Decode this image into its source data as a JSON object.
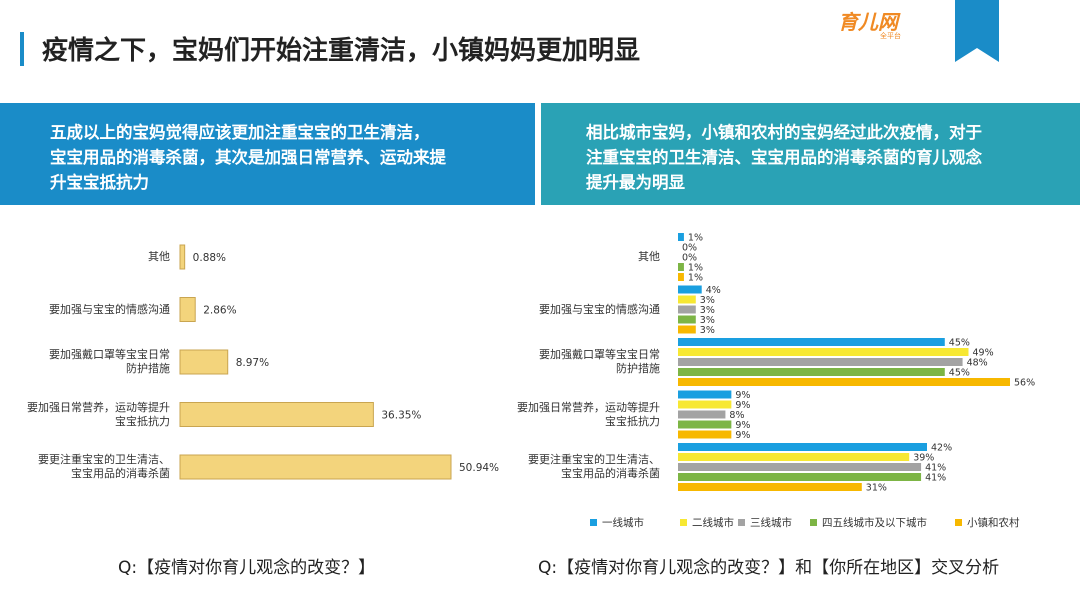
{
  "header": {
    "title": "疫情之下，宝妈们开始注重清洁，小镇妈妈更加明显",
    "logo": "育儿网",
    "logo_sub": "全平台"
  },
  "panels": [
    "五成以上的宝妈觉得应该更加注重宝宝的卫生清洁，\n宝宝用品的消毒杀菌，其次是加强日常营养、运动来提\n升宝宝抵抗力",
    "相比城市宝妈，小镇和农村的宝妈经过此次疫情，对于\n注重宝宝的卫生清洁、宝宝用品的消毒杀菌的育儿观念\n提升最为明显"
  ],
  "chart_data": [
    {
      "type": "bar",
      "caption": "Q:【疫情对你育儿观念的改变？】",
      "categories": [
        "其他",
        "要加强与宝宝的情感沟通",
        "要加强戴口罩等宝宝日常\n防护措施",
        "要加强日常营养，运动等提升\n宝宝抵抗力",
        "要更注重宝宝的卫生清洁、\n宝宝用品的消毒杀菌"
      ],
      "values": [
        0.88,
        2.86,
        8.97,
        36.35,
        50.94
      ],
      "value_labels": [
        "0.88%",
        "2.86%",
        "8.97%",
        "36.35%",
        "50.94%"
      ],
      "color": "#f3d47c"
    },
    {
      "type": "bar",
      "caption": "Q:【疫情对你育儿观念的改变？】和【你所在地区】交叉分析",
      "categories": [
        "其他",
        "要加强与宝宝的情感沟通",
        "要加强戴口罩等宝宝日常\n防护措施",
        "要加强日常营养，运动等提升\n宝宝抵抗力",
        "要更注重宝宝的卫生清洁、\n宝宝用品的消毒杀菌"
      ],
      "series": [
        {
          "name": "一线城市",
          "color": "#1a9fe0",
          "values": [
            1,
            4,
            45,
            9,
            42
          ],
          "value_labels": [
            "1%",
            "4%",
            "45%",
            "9%",
            "42%"
          ]
        },
        {
          "name": "二线城市",
          "color": "#f7e833",
          "values": [
            0,
            3,
            49,
            9,
            39
          ],
          "value_labels": [
            "0%",
            "3%",
            "49%",
            "9%",
            "39%"
          ]
        },
        {
          "name": "三线城市",
          "color": "#a3a3a3",
          "values": [
            0,
            3,
            48,
            8,
            41
          ],
          "value_labels": [
            "0%",
            "3%",
            "48%",
            "8%",
            "41%"
          ]
        },
        {
          "name": "四五线城市及以下城市",
          "color": "#7db545",
          "values": [
            1,
            3,
            45,
            9,
            41
          ],
          "value_labels": [
            "1%",
            "3%",
            "45%",
            "9%",
            "41%"
          ]
        },
        {
          "name": "小镇和农村",
          "color": "#f7b800",
          "values": [
            1,
            3,
            56,
            9,
            31
          ],
          "value_labels": [
            "1%",
            "3%",
            "56%",
            "9%",
            "31%"
          ]
        }
      ]
    }
  ]
}
